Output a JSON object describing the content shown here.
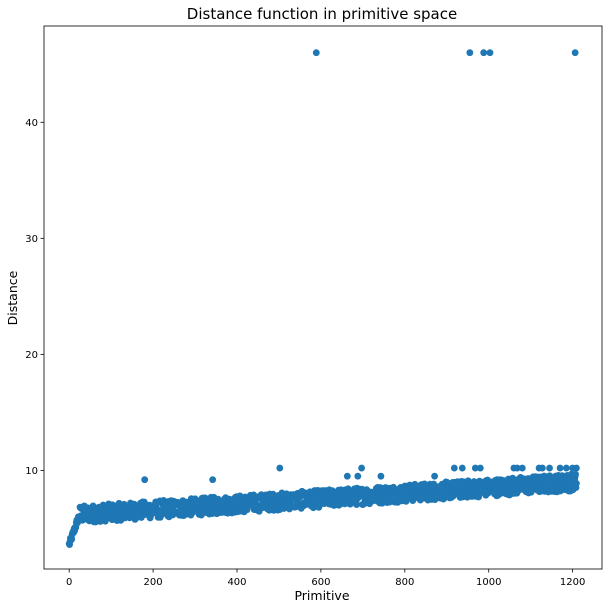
{
  "chart_data": {
    "type": "scatter",
    "title": "Distance function in primitive space",
    "xlabel": "Primitive",
    "ylabel": "Distance",
    "xlim": [
      -60,
      1270
    ],
    "ylim": [
      1.5,
      48.3
    ],
    "xticks": [
      0,
      200,
      400,
      600,
      800,
      1000,
      1200
    ],
    "yticks": [
      10,
      20,
      30,
      40
    ],
    "grid": false,
    "legend": "none",
    "marker_color": "#1f77b4",
    "n_points": 1210,
    "trend": "y rises from about 3.6 at x=0 to about 6.2 by x=25, then roughly linearly to about 9.0 at x=1209 with spread of about +/-0.7",
    "outliers": [
      {
        "x": 589,
        "y": 46.0
      },
      {
        "x": 955,
        "y": 46.0
      },
      {
        "x": 988,
        "y": 46.0
      },
      {
        "x": 1003,
        "y": 46.0
      },
      {
        "x": 1206,
        "y": 46.0
      }
    ],
    "high_points": [
      {
        "x": 180,
        "y": 9.2
      },
      {
        "x": 342,
        "y": 9.2
      },
      {
        "x": 502,
        "y": 10.2
      },
      {
        "x": 663,
        "y": 9.5
      },
      {
        "x": 688,
        "y": 9.5
      },
      {
        "x": 697,
        "y": 10.2
      },
      {
        "x": 743,
        "y": 9.5
      },
      {
        "x": 871,
        "y": 9.5
      },
      {
        "x": 918,
        "y": 10.2
      },
      {
        "x": 937,
        "y": 10.2
      },
      {
        "x": 968,
        "y": 10.2
      },
      {
        "x": 980,
        "y": 10.2
      },
      {
        "x": 1060,
        "y": 10.2
      },
      {
        "x": 1068,
        "y": 10.2
      },
      {
        "x": 1080,
        "y": 10.2
      },
      {
        "x": 1120,
        "y": 10.2
      },
      {
        "x": 1128,
        "y": 10.2
      },
      {
        "x": 1145,
        "y": 10.2
      },
      {
        "x": 1170,
        "y": 10.2
      },
      {
        "x": 1185,
        "y": 10.2
      },
      {
        "x": 1200,
        "y": 10.2
      },
      {
        "x": 1209,
        "y": 10.2
      }
    ]
  }
}
